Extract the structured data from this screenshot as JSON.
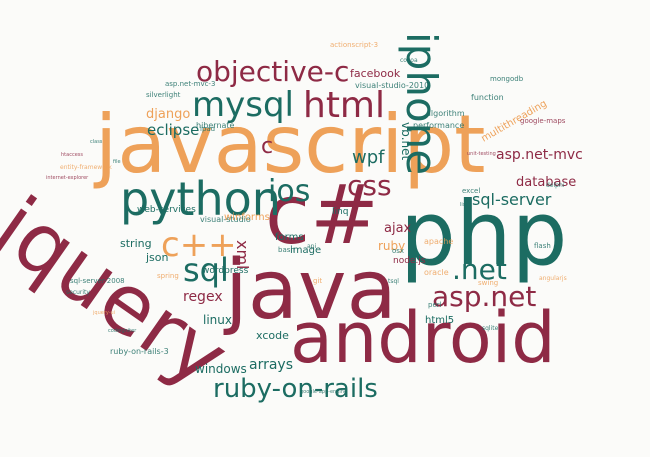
{
  "palette": {
    "maroon": "#8e2a45",
    "orange": "#eea159",
    "teal": "#1c6c62",
    "background": "#fbfbf9"
  },
  "words": [
    {
      "text": "javascript",
      "color": "orange"
    },
    {
      "text": "jquery",
      "color": "maroon"
    },
    {
      "text": "php",
      "color": "teal"
    },
    {
      "text": "c#",
      "color": "maroon"
    },
    {
      "text": "java",
      "color": "maroon"
    },
    {
      "text": "android",
      "color": "maroon"
    },
    {
      "text": "python",
      "color": "teal"
    },
    {
      "text": "iphone",
      "color": "teal"
    },
    {
      "text": "objective-c",
      "color": "maroon"
    },
    {
      "text": "html",
      "color": "maroon"
    },
    {
      "text": "mysql",
      "color": "teal"
    },
    {
      "text": "ios",
      "color": "teal"
    },
    {
      "text": "css",
      "color": "maroon"
    },
    {
      "text": "c++",
      "color": "orange"
    },
    {
      "text": "sql",
      "color": "teal"
    },
    {
      "text": "asp.net",
      "color": "maroon"
    },
    {
      "text": ".net",
      "color": "teal"
    },
    {
      "text": "ruby-on-rails",
      "color": "teal"
    },
    {
      "text": "c",
      "color": "maroon"
    },
    {
      "text": "sql-server",
      "color": "teal"
    },
    {
      "text": "asp.net-mvc",
      "color": "maroon"
    },
    {
      "text": "database",
      "color": "maroon"
    },
    {
      "text": "wpf",
      "color": "teal"
    },
    {
      "text": "eclipse",
      "color": "teal"
    },
    {
      "text": "django",
      "color": "orange"
    },
    {
      "text": "regex",
      "color": "maroon"
    },
    {
      "text": "arrays",
      "color": "teal"
    },
    {
      "text": "ajax",
      "color": "maroon"
    },
    {
      "text": "ruby",
      "color": "orange"
    },
    {
      "text": "xml",
      "color": "maroon"
    },
    {
      "text": "linux",
      "color": "teal"
    },
    {
      "text": "windows",
      "color": "teal"
    },
    {
      "text": "json",
      "color": "teal"
    },
    {
      "text": "string",
      "color": "teal"
    },
    {
      "text": "xcode",
      "color": "teal"
    },
    {
      "text": "facebook",
      "color": "maroon"
    },
    {
      "text": "vb.net",
      "color": "teal"
    },
    {
      "text": "multithreading",
      "color": "orange"
    },
    {
      "text": "html5",
      "color": "teal"
    },
    {
      "text": "forms",
      "color": "teal"
    },
    {
      "text": "image",
      "color": "teal"
    },
    {
      "text": "winforms",
      "color": "orange"
    },
    {
      "text": "wordpress",
      "color": "teal"
    },
    {
      "text": "node.js",
      "color": "maroon"
    },
    {
      "text": "linq",
      "color": "teal"
    },
    {
      "text": "web-services",
      "color": "teal"
    },
    {
      "text": "visual-studio",
      "color": "teal"
    },
    {
      "text": "hibernate",
      "color": "teal"
    },
    {
      "text": "performance",
      "color": "teal"
    },
    {
      "text": "algorithm",
      "color": "teal"
    },
    {
      "text": "function",
      "color": "teal"
    },
    {
      "text": "mongodb",
      "color": "teal"
    },
    {
      "text": "visual-studio-2010",
      "color": "teal"
    },
    {
      "text": "actionscript-3",
      "color": "orange"
    },
    {
      "text": "asp.net-mvc-3",
      "color": "teal"
    },
    {
      "text": "silverlight",
      "color": "teal"
    },
    {
      "text": "ipad",
      "color": "teal"
    },
    {
      "text": "google-maps",
      "color": "maroon"
    },
    {
      "text": "ruby-on-rails-3",
      "color": "teal"
    },
    {
      "text": "sql-server-2008",
      "color": "teal"
    },
    {
      "text": "apache",
      "color": "orange"
    },
    {
      "text": "security",
      "color": "teal"
    },
    {
      "text": "oracle",
      "color": "orange"
    },
    {
      "text": "excel",
      "color": "teal"
    },
    {
      "text": "perl",
      "color": "teal"
    },
    {
      "text": "git",
      "color": "orange"
    },
    {
      "text": "bash",
      "color": "teal"
    },
    {
      "text": "spring",
      "color": "orange"
    },
    {
      "text": "osx",
      "color": "teal"
    },
    {
      "text": "swing",
      "color": "orange"
    },
    {
      "text": "flash",
      "color": "teal"
    },
    {
      "text": "delphi",
      "color": "teal"
    },
    {
      "text": "entity-framework",
      "color": "orange"
    },
    {
      "text": "htaccess",
      "color": "maroon"
    },
    {
      "text": "internet-explorer",
      "color": "maroon"
    },
    {
      "text": "class",
      "color": "teal"
    },
    {
      "text": "file",
      "color": "teal"
    },
    {
      "text": "list",
      "color": "teal"
    },
    {
      "text": "sqlite",
      "color": "teal"
    },
    {
      "text": "api",
      "color": "teal"
    },
    {
      "text": "codeigniter",
      "color": "teal"
    },
    {
      "text": "google-app-engine",
      "color": "teal"
    },
    {
      "text": "cocoa",
      "color": "teal"
    },
    {
      "text": "unit-testing",
      "color": "maroon"
    },
    {
      "text": "tsql",
      "color": "teal"
    },
    {
      "text": "jquery-ui",
      "color": "orange"
    },
    {
      "text": "angularjs",
      "color": "orange"
    }
  ]
}
